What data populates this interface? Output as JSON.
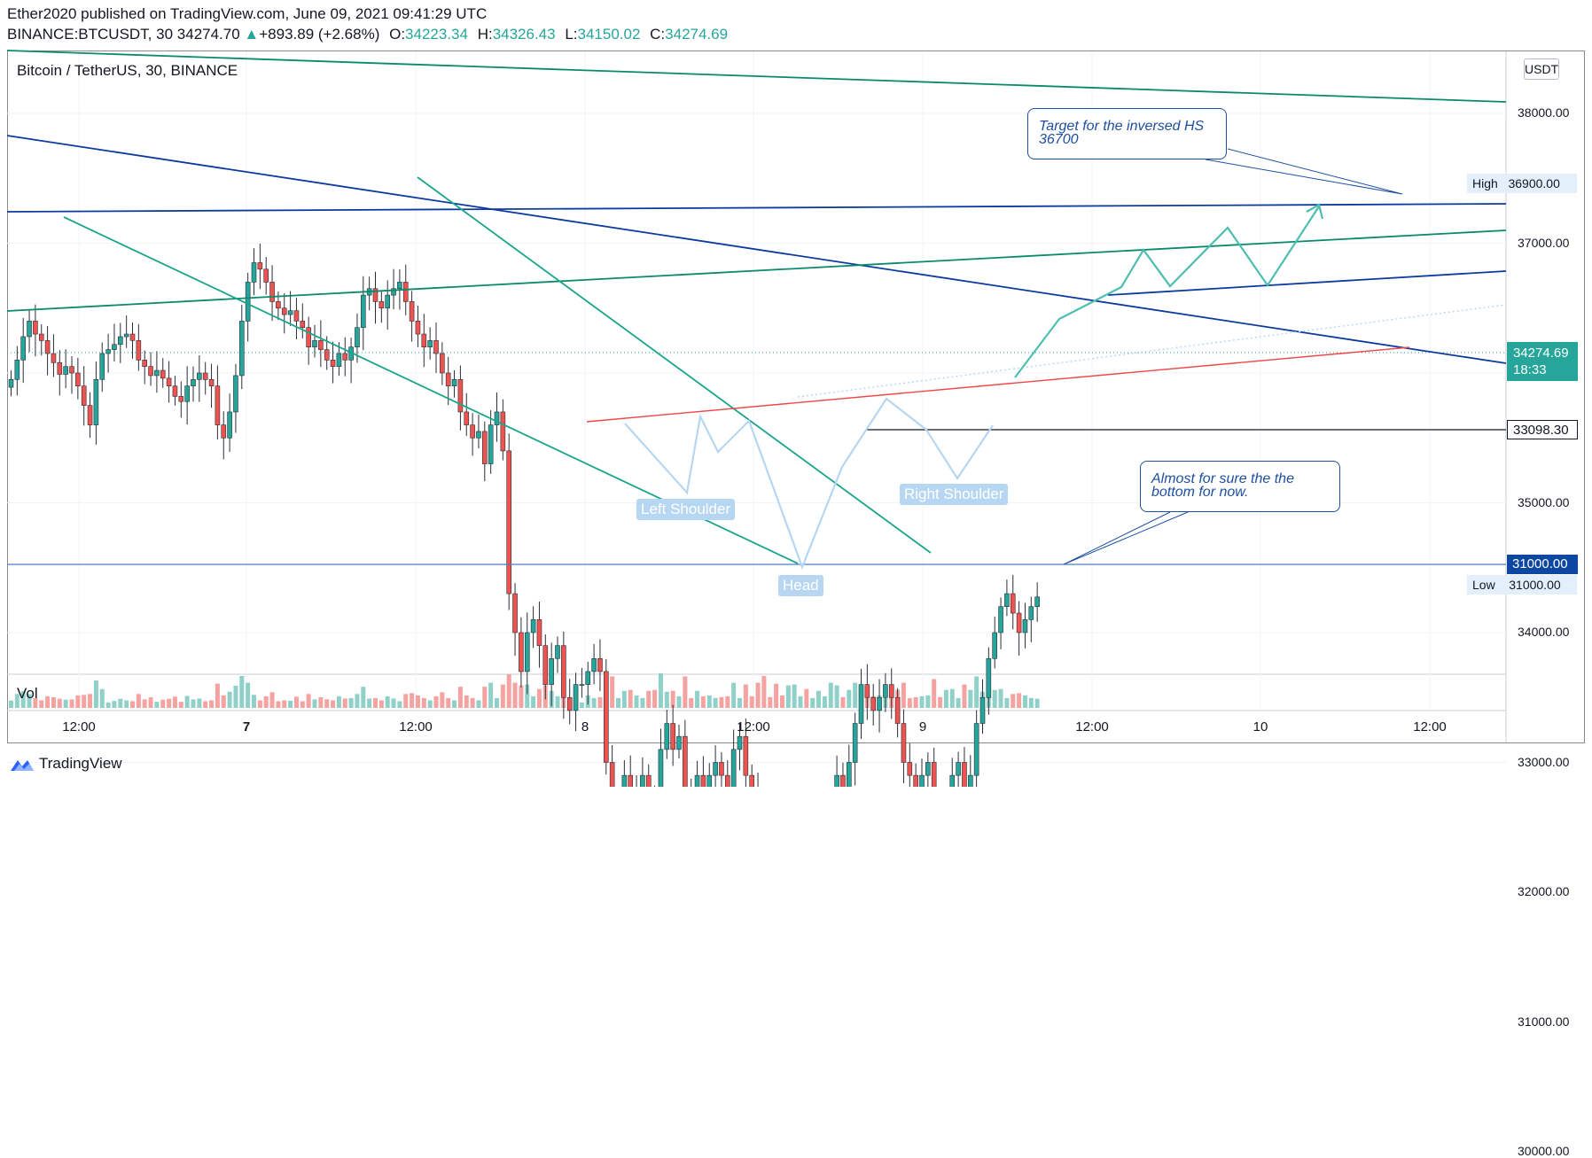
{
  "header": {
    "publisher_line": "Ether2020 published on TradingView.com, June 09, 2021 09:41:29 UTC",
    "ticker": "BINANCE:BTCUSDT, 30",
    "last": "34274.70",
    "change_arrow": "▲",
    "change": "+893.89 (+2.68%)",
    "o_label": "O:",
    "o_value": "34223.34",
    "h_label": "H:",
    "h_value": "34326.43",
    "l_label": "L:",
    "l_value": "34150.02",
    "c_label": "C:",
    "c_value": "34274.69"
  },
  "chart_title": "Bitcoin / TetherUS, 30, BINANCE",
  "currency_button": "USDT",
  "volume_label": "Vol",
  "price_tags": {
    "high_label": "High",
    "high_value": "36900.00",
    "low_label": "Low",
    "low_value": "31000.00",
    "last_price": "34274.69",
    "countdown": "18:33",
    "hline_price": "33098.30",
    "support_price": "31000.00"
  },
  "annotations": {
    "target": "Target for the inversed HS 36700",
    "bottom": "Almost for sure the the bottom for now."
  },
  "patterns": {
    "left_shoulder": "Left Shoulder",
    "head": "Head",
    "right_shoulder": "Right Shoulder"
  },
  "colors": {
    "up": "#26a69a",
    "down": "#ef5350",
    "vol_up": "#8fd1c9",
    "vol_down": "#f5a3a1",
    "trend_green": "#0a8a6a",
    "trend_blue": "#0d3a9e",
    "wedge": "#1aa58a",
    "projection": "#4cbfb0",
    "pattern": "#b6d6f2",
    "neckline": "#f04646"
  },
  "footer": {
    "brand": "TradingView"
  },
  "chart_data": {
    "type": "candlestick",
    "title": "Bitcoin / TetherUS, 30, BINANCE",
    "y_axis": {
      "ticks": [
        38000,
        37000,
        36000,
        35000,
        34000,
        33000,
        32000,
        31000,
        30000
      ],
      "tick_labels": [
        "38000.00",
        "37000.00",
        "36000.00",
        "35000.00",
        "34000.00",
        "33000.00",
        "32000.00",
        "31000.00",
        "30000.00"
      ],
      "range": [
        29000,
        38600
      ]
    },
    "x_axis": {
      "ticks": [
        "12:00",
        "7",
        "12:00",
        "8",
        "12:00",
        "9",
        "12:00",
        "10",
        "12:00"
      ],
      "bold": [
        "7"
      ]
    },
    "close_series": [
      35950,
      36100,
      36280,
      36400,
      36300,
      36250,
      36150,
      36080,
      35990,
      36050,
      36000,
      35900,
      35750,
      35600,
      35950,
      36150,
      36180,
      36220,
      36280,
      36300,
      36250,
      36100,
      36050,
      35980,
      36020,
      35960,
      35900,
      35820,
      35780,
      35900,
      35950,
      36000,
      35950,
      35900,
      35600,
      35500,
      35700,
      35980,
      36400,
      36700,
      36850,
      36800,
      36700,
      36550,
      36500,
      36450,
      36480,
      36400,
      36350,
      36200,
      36250,
      36180,
      36100,
      36050,
      36150,
      36100,
      36200,
      36350,
      36600,
      36650,
      36550,
      36500,
      36600,
      36650,
      36700,
      36550,
      36400,
      36300,
      36200,
      36250,
      36150,
      36000,
      35900,
      35950,
      35700,
      35600,
      35500,
      35550,
      35300,
      35600,
      35700,
      35400,
      34300,
      34000,
      33700,
      34000,
      34100,
      33900,
      33600,
      33800,
      33900,
      33500,
      33400,
      33600,
      33600,
      33700,
      33800,
      33700,
      33000,
      32600,
      32700,
      32900,
      32700,
      32800,
      32900,
      32700,
      32500,
      33100,
      33300,
      33100,
      33200,
      32800,
      32700,
      32900,
      32800,
      32900,
      33000,
      32900,
      32800,
      33100,
      33200,
      32900,
      32800,
      32500,
      31900,
      31800,
      31500,
      31400,
      31700,
      32000,
      32100,
      31900,
      32000,
      32200,
      32300,
      32600,
      32900,
      32800,
      33000,
      33300,
      33600,
      33500,
      33400,
      33500,
      33600,
      33500,
      33300,
      33000,
      32900,
      32800,
      32900,
      33000,
      32600,
      32500,
      32700,
      32900,
      33000,
      32700,
      32900,
      33300,
      33500,
      33800,
      34000,
      34200,
      34300,
      34150,
      34000,
      34100,
      34200,
      34274.69
    ],
    "labeled_levels": {
      "high": 36900,
      "low": 31000,
      "horizontal_line": 33098.3,
      "last": 34274.69
    },
    "annotations": [
      "Target for the inversed HS 36700",
      "Almost for sure the the bottom for now."
    ],
    "patterns": [
      "Left Shoulder",
      "Head",
      "Right Shoulder"
    ],
    "grid": true
  }
}
